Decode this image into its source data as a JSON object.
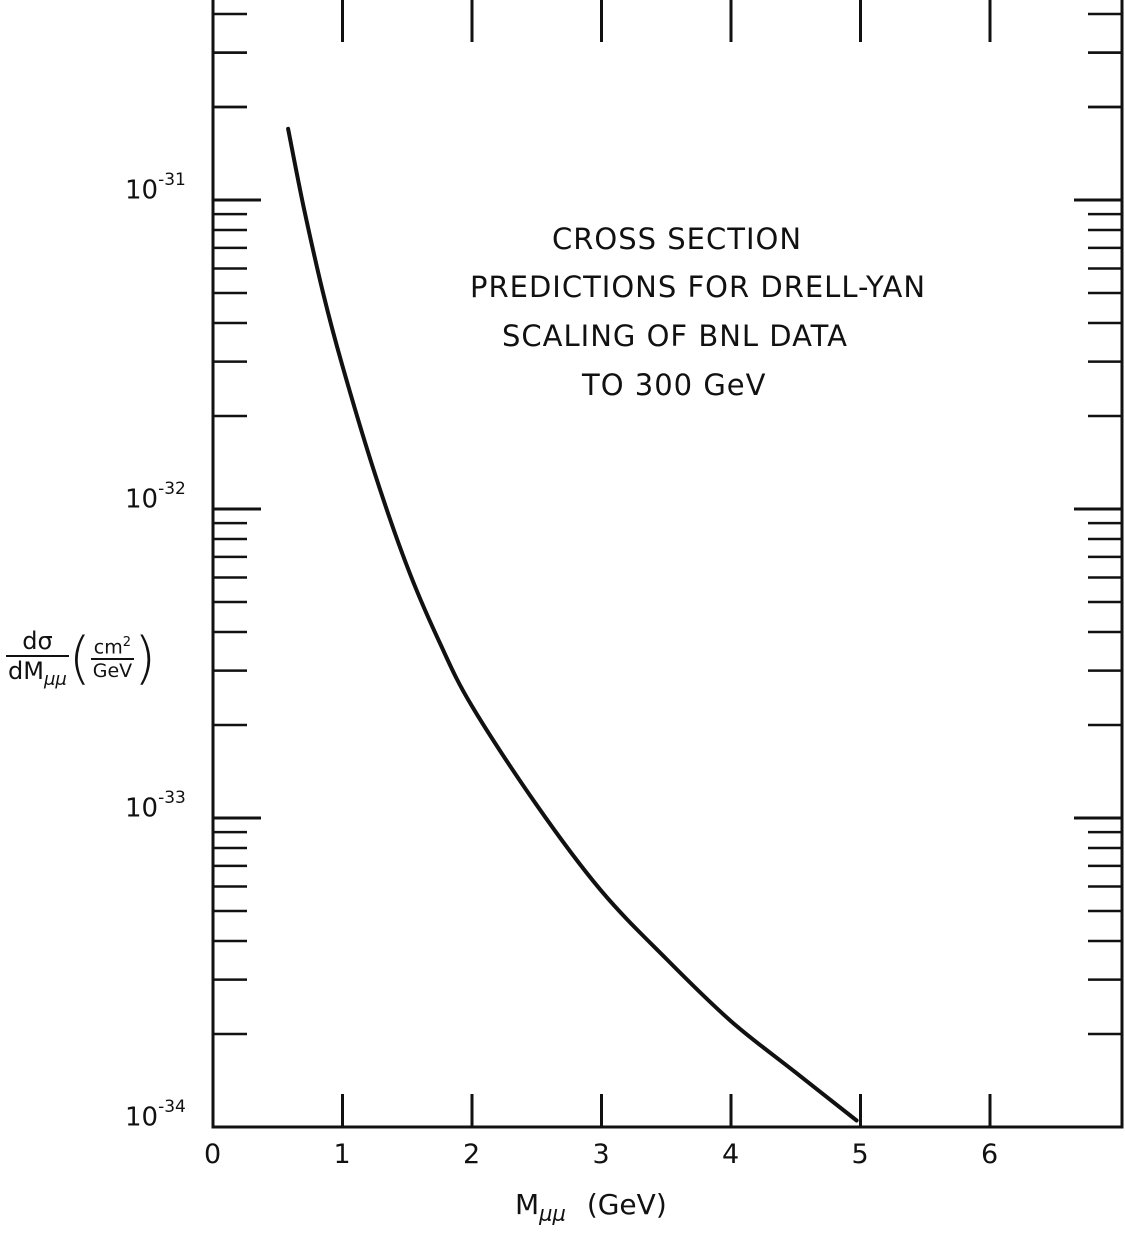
{
  "chart_data": {
    "type": "line",
    "title": [
      "CROSS SECTION",
      "PREDICTIONS FOR DRELL-YAN",
      "SCALING OF BNL DATA",
      "TO 300 GeV"
    ],
    "xlabel": "M",
    "xlabel_sub": "μμ",
    "xlabel_unit": "(GeV)",
    "ylabel": {
      "num": "dσ",
      "den_main": "dM",
      "den_sub": "μμ",
      "unit_num": "cm",
      "unit_exp": "2",
      "unit_den": "GeV"
    },
    "xlim": [
      0,
      7
    ],
    "ylim": [
      1e-34,
      1e-30
    ],
    "yscale": "log",
    "x_ticks": [
      "0",
      "1",
      "2",
      "3",
      "4",
      "5",
      "6"
    ],
    "y_ticks": [
      {
        "base": "10",
        "exp": "-34"
      },
      {
        "base": "10",
        "exp": "-33"
      },
      {
        "base": "10",
        "exp": "-32"
      },
      {
        "base": "10",
        "exp": "-31"
      }
    ],
    "grid": false,
    "series": [
      {
        "x": [
          0.58,
          0.7,
          0.85,
          1.0,
          1.25,
          1.5,
          1.75,
          2.0,
          2.5,
          3.0,
          3.5,
          4.0,
          4.5,
          4.97
        ],
        "y": [
          1.7e-31,
          9.5e-32,
          5e-32,
          2.9e-32,
          1.3e-32,
          6.5e-33,
          3.7e-33,
          2.3e-33,
          1.1e-33,
          5.8e-34,
          3.5e-34,
          2.2e-34,
          1.5e-34,
          1.05e-34
        ]
      }
    ]
  }
}
